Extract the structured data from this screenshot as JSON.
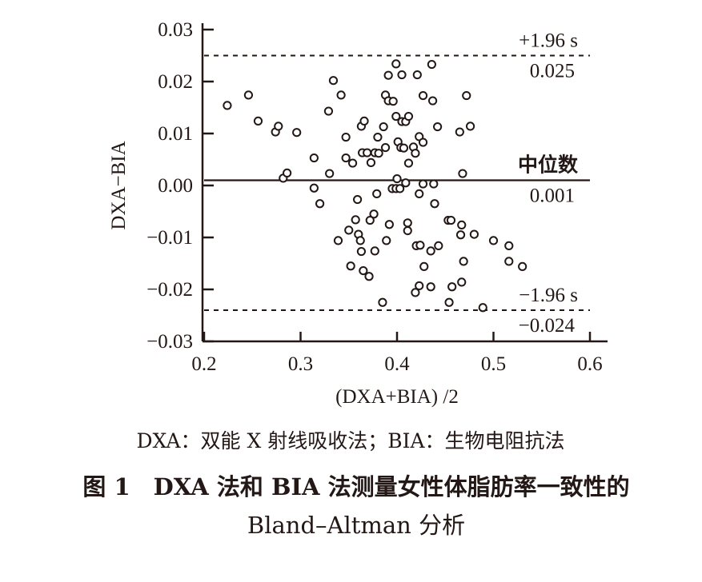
{
  "chart_data": {
    "type": "scatter",
    "title": "Bland-Altman",
    "xlabel": "(DXA+BIA) /2",
    "ylabel": "DXA−BIA",
    "xlim": [
      0.2,
      0.6
    ],
    "ylim": [
      -0.03,
      0.03
    ],
    "x_ticks": [
      0.2,
      0.3,
      0.4,
      0.5,
      0.6
    ],
    "x_tick_labels": [
      "0.2",
      "0.3",
      "0.4",
      "0.5",
      "0.6"
    ],
    "y_ticks": [
      0.03,
      0.02,
      0.01,
      0.0,
      -0.01,
      -0.02,
      -0.03
    ],
    "y_tick_labels": [
      "0.03",
      "0.02",
      "0.01",
      "0.00",
      "−0.01",
      "−0.02",
      "−0.03"
    ],
    "grid": false,
    "reference_lines": [
      {
        "name": "+1.96 s",
        "label": "+1.96 s",
        "value": 0.025,
        "value_label": "0.025",
        "style": "dashed"
      },
      {
        "name": "median",
        "label": "中位数",
        "value": 0.001,
        "value_label": "0.001",
        "style": "solid"
      },
      {
        "name": "-1.96 s",
        "label": "−1.96 s",
        "value": -0.024,
        "value_label": "−0.024",
        "style": "dashed"
      }
    ],
    "points": [
      [
        0.224,
        0.0154
      ],
      [
        0.246,
        0.0174
      ],
      [
        0.256,
        0.0124
      ],
      [
        0.274,
        0.0103
      ],
      [
        0.277,
        0.0114
      ],
      [
        0.296,
        0.0102
      ],
      [
        0.314,
        0.0053
      ],
      [
        0.334,
        0.0202
      ],
      [
        0.342,
        0.0174
      ],
      [
        0.329,
        0.0143
      ],
      [
        0.347,
        0.0093
      ],
      [
        0.347,
        0.0053
      ],
      [
        0.354,
        0.0043
      ],
      [
        0.363,
        0.0114
      ],
      [
        0.366,
        0.0124
      ],
      [
        0.364,
        0.0063
      ],
      [
        0.369,
        0.0063
      ],
      [
        0.373,
        0.0044
      ],
      [
        0.377,
        0.0063
      ],
      [
        0.381,
        0.0062
      ],
      [
        0.38,
        0.0093
      ],
      [
        0.386,
        0.0113
      ],
      [
        0.388,
        0.0073
      ],
      [
        0.388,
        0.0174
      ],
      [
        0.391,
        0.0163
      ],
      [
        0.396,
        0.0162
      ],
      [
        0.391,
        0.0212
      ],
      [
        0.399,
        0.0234
      ],
      [
        0.399,
        0.0133
      ],
      [
        0.401,
        0.0084
      ],
      [
        0.282,
        0.0014
      ],
      [
        0.286,
        0.0024
      ],
      [
        0.33,
        0.0023
      ],
      [
        0.314,
        -0.0005
      ],
      [
        0.4,
        0.0013
      ],
      [
        0.32,
        -0.0035
      ],
      [
        0.359,
        -0.0027
      ],
      [
        0.379,
        -0.0016
      ],
      [
        0.395,
        -0.0006
      ],
      [
        0.399,
        -0.0006
      ],
      [
        0.403,
        -0.0006
      ],
      [
        0.376,
        -0.0055
      ],
      [
        0.357,
        -0.0066
      ],
      [
        0.372,
        -0.0067
      ],
      [
        0.392,
        -0.0075
      ],
      [
        0.35,
        -0.0086
      ],
      [
        0.36,
        -0.0094
      ],
      [
        0.362,
        -0.0106
      ],
      [
        0.339,
        -0.0106
      ],
      [
        0.389,
        -0.0106
      ],
      [
        0.363,
        -0.0127
      ],
      [
        0.377,
        -0.0126
      ],
      [
        0.352,
        -0.0155
      ],
      [
        0.365,
        -0.0164
      ],
      [
        0.371,
        -0.0175
      ],
      [
        0.385,
        -0.0225
      ],
      [
        0.436,
        0.0233
      ],
      [
        0.405,
        0.0213
      ],
      [
        0.421,
        0.0213
      ],
      [
        0.427,
        0.0173
      ],
      [
        0.437,
        0.0163
      ],
      [
        0.472,
        0.0173
      ],
      [
        0.405,
        0.0123
      ],
      [
        0.409,
        0.0123
      ],
      [
        0.412,
        0.0133
      ],
      [
        0.442,
        0.0113
      ],
      [
        0.423,
        0.0094
      ],
      [
        0.427,
        0.0083
      ],
      [
        0.465,
        0.0103
      ],
      [
        0.476,
        0.0114
      ],
      [
        0.404,
        0.0073
      ],
      [
        0.407,
        0.0072
      ],
      [
        0.417,
        0.0074
      ],
      [
        0.419,
        0.0062
      ],
      [
        0.412,
        0.0043
      ],
      [
        0.468,
        0.0023
      ],
      [
        0.409,
        0.0005
      ],
      [
        0.427,
        0.0003
      ],
      [
        0.438,
        0.0003
      ],
      [
        0.423,
        -0.0016
      ],
      [
        0.439,
        -0.0035
      ],
      [
        0.411,
        -0.0072
      ],
      [
        0.411,
        -0.0087
      ],
      [
        0.453,
        -0.0067
      ],
      [
        0.456,
        -0.0067
      ],
      [
        0.467,
        -0.0076
      ],
      [
        0.466,
        -0.0095
      ],
      [
        0.48,
        -0.0094
      ],
      [
        0.5,
        -0.0106
      ],
      [
        0.516,
        -0.0116
      ],
      [
        0.42,
        -0.0116
      ],
      [
        0.424,
        -0.0115
      ],
      [
        0.435,
        -0.0126
      ],
      [
        0.443,
        -0.0116
      ],
      [
        0.428,
        -0.0156
      ],
      [
        0.469,
        -0.0146
      ],
      [
        0.516,
        -0.0146
      ],
      [
        0.53,
        -0.0156
      ],
      [
        0.419,
        -0.0206
      ],
      [
        0.423,
        -0.0193
      ],
      [
        0.435,
        -0.0195
      ],
      [
        0.457,
        -0.0195
      ],
      [
        0.467,
        -0.0186
      ],
      [
        0.454,
        -0.0225
      ],
      [
        0.489,
        -0.0235
      ]
    ]
  },
  "caption": {
    "note": "DXA：双能 X 射线吸收法；BIA：生物电阻抗法",
    "figure_title_line1": "图 1　DXA 法和 BIA 法测量女性体脂肪率一致性的",
    "figure_title_line2": "Bland–Altman 分析"
  },
  "colors": {
    "ink": "#231815",
    "background": "#ffffff"
  }
}
